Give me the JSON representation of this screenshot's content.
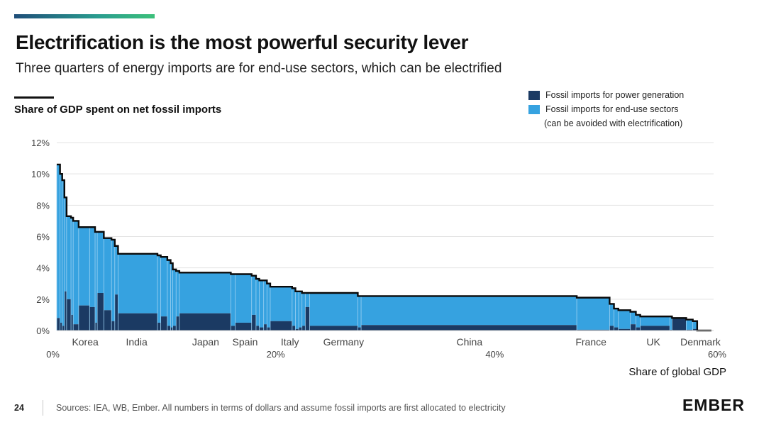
{
  "page": {
    "title": "Electrification is the most powerful security lever",
    "subtitle": "Three quarters of energy imports are for end-use sectors, which can be electrified",
    "page_number": "24",
    "sources": "Sources: IEA, WB, Ember.  All numbers in terms of dollars and assume fossil imports are first allocated to electricity",
    "logo": "EMBER"
  },
  "colors": {
    "power": "#1b3a63",
    "enduse": "#36a2e0",
    "stripe": "#9fd2f2",
    "outline": "#0a0a0a",
    "grid": "#e3e3e3"
  },
  "chart_data": {
    "type": "area",
    "title": "Share of GDP spent on net fossil imports",
    "xlabel": "Share of global GDP",
    "ylabel": "Share of GDP spent on net fossil imports",
    "xlim": [
      0,
      60
    ],
    "ylim": [
      0,
      12
    ],
    "x_ticks": [
      "0%",
      "20%",
      "40%",
      "60%"
    ],
    "x_tick_values": [
      0,
      20,
      40,
      60
    ],
    "y_ticks": [
      "0%",
      "2%",
      "4%",
      "6%",
      "8%",
      "10%",
      "12%"
    ],
    "y_tick_values": [
      0,
      2,
      4,
      6,
      8,
      10,
      12
    ],
    "legend": {
      "power": "Fossil imports for power generation",
      "enduse": "Fossil imports for end-use sectors",
      "enduse_note": "(can be avoided with electrification)"
    },
    "series_names": [
      "Fossil imports for power generation",
      "Fossil imports for end-use sectors"
    ],
    "countries": [
      {
        "x0": 0.0,
        "x1": 0.3,
        "total": 10.6,
        "power": 0.8
      },
      {
        "x0": 0.3,
        "x1": 0.5,
        "total": 10.0,
        "power": 0.5
      },
      {
        "x0": 0.5,
        "x1": 0.7,
        "total": 9.6,
        "power": 0.3
      },
      {
        "x0": 0.7,
        "x1": 0.9,
        "total": 8.5,
        "power": 2.5
      },
      {
        "x0": 0.9,
        "x1": 1.3,
        "total": 7.3,
        "power": 2.0
      },
      {
        "x0": 1.3,
        "x1": 1.5,
        "total": 7.2,
        "power": 1.0
      },
      {
        "x0": 1.5,
        "x1": 2.0,
        "total": 7.0,
        "power": 0.4
      },
      {
        "x0": 2.0,
        "x1": 3.0,
        "total": 6.6,
        "power": 1.6
      },
      {
        "x0": 3.0,
        "x1": 3.5,
        "total": 6.6,
        "power": 1.5
      },
      {
        "x0": 3.5,
        "x1": 3.7,
        "total": 6.3,
        "power": 0.5
      },
      {
        "x0": 3.7,
        "x1": 4.3,
        "total": 6.3,
        "power": 2.4
      },
      {
        "x0": 4.3,
        "x1": 5.0,
        "total": 5.9,
        "power": 1.3
      },
      {
        "x0": 5.0,
        "x1": 5.3,
        "total": 5.8,
        "power": 0.6
      },
      {
        "x0": 5.3,
        "x1": 5.6,
        "total": 5.4,
        "power": 2.3
      },
      {
        "x0": 5.6,
        "x1": 9.2,
        "total": 4.9,
        "power": 1.1
      },
      {
        "x0": 9.2,
        "x1": 9.5,
        "total": 4.8,
        "power": 0.5
      },
      {
        "x0": 9.5,
        "x1": 10.1,
        "total": 4.7,
        "power": 0.9
      },
      {
        "x0": 10.1,
        "x1": 10.4,
        "total": 4.5,
        "power": 0.3
      },
      {
        "x0": 10.4,
        "x1": 10.6,
        "total": 4.3,
        "power": 0.2
      },
      {
        "x0": 10.6,
        "x1": 10.9,
        "total": 3.9,
        "power": 0.3
      },
      {
        "x0": 10.9,
        "x1": 11.2,
        "total": 3.8,
        "power": 0.9
      },
      {
        "x0": 11.2,
        "x1": 15.9,
        "total": 3.7,
        "power": 1.1
      },
      {
        "x0": 15.9,
        "x1": 16.3,
        "total": 3.6,
        "power": 0.3
      },
      {
        "x0": 16.3,
        "x1": 17.8,
        "total": 3.6,
        "power": 0.5
      },
      {
        "x0": 17.8,
        "x1": 18.2,
        "total": 3.5,
        "power": 1.0
      },
      {
        "x0": 18.2,
        "x1": 18.5,
        "total": 3.3,
        "power": 0.3
      },
      {
        "x0": 18.5,
        "x1": 18.9,
        "total": 3.2,
        "power": 0.2
      },
      {
        "x0": 18.9,
        "x1": 19.2,
        "total": 3.2,
        "power": 0.4
      },
      {
        "x0": 19.2,
        "x1": 19.5,
        "total": 3.0,
        "power": 0.2
      },
      {
        "x0": 19.5,
        "x1": 21.5,
        "total": 2.8,
        "power": 0.6
      },
      {
        "x0": 21.5,
        "x1": 21.8,
        "total": 2.7,
        "power": 0.3
      },
      {
        "x0": 21.8,
        "x1": 22.1,
        "total": 2.5,
        "power": 0.1
      },
      {
        "x0": 22.1,
        "x1": 22.4,
        "total": 2.5,
        "power": 0.2
      },
      {
        "x0": 22.4,
        "x1": 22.7,
        "total": 2.4,
        "power": 0.3
      },
      {
        "x0": 22.7,
        "x1": 23.1,
        "total": 2.4,
        "power": 1.5
      },
      {
        "x0": 23.1,
        "x1": 27.5,
        "total": 2.4,
        "power": 0.3
      },
      {
        "x0": 27.5,
        "x1": 27.8,
        "total": 2.2,
        "power": 0.2
      },
      {
        "x0": 27.8,
        "x1": 47.5,
        "total": 2.2,
        "power": 0.35
      },
      {
        "x0": 47.5,
        "x1": 50.5,
        "total": 2.1,
        "power": 0.05
      },
      {
        "x0": 50.5,
        "x1": 50.9,
        "total": 1.7,
        "power": 0.3
      },
      {
        "x0": 50.9,
        "x1": 51.3,
        "total": 1.4,
        "power": 0.2
      },
      {
        "x0": 51.3,
        "x1": 52.4,
        "total": 1.3,
        "power": 0.1
      },
      {
        "x0": 52.4,
        "x1": 52.9,
        "total": 1.2,
        "power": 0.4
      },
      {
        "x0": 52.9,
        "x1": 53.3,
        "total": 1.0,
        "power": 0.2
      },
      {
        "x0": 53.3,
        "x1": 56.0,
        "total": 0.9,
        "power": 0.3
      },
      {
        "x0": 56.0,
        "x1": 56.2,
        "total": 0.9,
        "power": 0.05
      },
      {
        "x0": 56.2,
        "x1": 57.5,
        "total": 0.8,
        "power": 0.8
      },
      {
        "x0": 57.5,
        "x1": 58.1,
        "total": 0.7,
        "power": 0.05
      },
      {
        "x0": 58.1,
        "x1": 58.5,
        "total": 0.6,
        "power": 0.1
      },
      {
        "x0": 58.5,
        "x1": 59.8,
        "total": 0.0,
        "power": 0.0
      }
    ],
    "annotations": [
      {
        "label": "Korea",
        "x": 2.6
      },
      {
        "label": "India",
        "x": 7.3
      },
      {
        "label": "Japan",
        "x": 13.6
      },
      {
        "label": "Spain",
        "x": 17.2
      },
      {
        "label": "Italy",
        "x": 21.3
      },
      {
        "label": "Germany",
        "x": 26.2
      },
      {
        "label": "China",
        "x": 37.7
      },
      {
        "label": "France",
        "x": 48.8
      },
      {
        "label": "UK",
        "x": 54.5
      },
      {
        "label": "Denmark",
        "x": 58.8
      }
    ]
  }
}
